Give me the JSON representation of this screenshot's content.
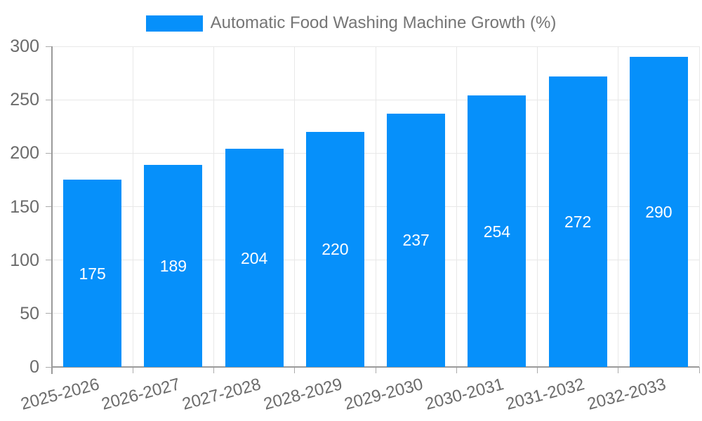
{
  "chart_data": {
    "type": "bar",
    "title": "Automatic Food Washing Machine Growth (%)",
    "legend_position": "top",
    "legend_entries": [
      "Automatic Food Washing Machine Growth (%)"
    ],
    "categories": [
      "2025-2026",
      "2026-2027",
      "2027-2028",
      "2028-2029",
      "2029-2030",
      "2030-2031",
      "2031-2032",
      "2032-2033"
    ],
    "values": [
      175,
      189,
      204,
      220,
      237,
      254,
      272,
      290
    ],
    "xlabel": "",
    "ylabel": "",
    "ylim": [
      0,
      300
    ],
    "yticks": [
      0,
      50,
      100,
      150,
      200,
      250,
      300
    ],
    "grid": true,
    "value_labels_position": "inside-center",
    "x_label_rotation_deg": -15,
    "bar_color": "#0690FA"
  },
  "colors": {
    "bar": "#0690FA",
    "gridline": "#E8E8E8",
    "axis_line": "#9A9A9A",
    "tick": "#ABABAB",
    "axis_label_text": "#6B6B6B",
    "legend_text": "#757575",
    "value_label_text": "#FFFFFF",
    "background": "#FFFFFF"
  }
}
